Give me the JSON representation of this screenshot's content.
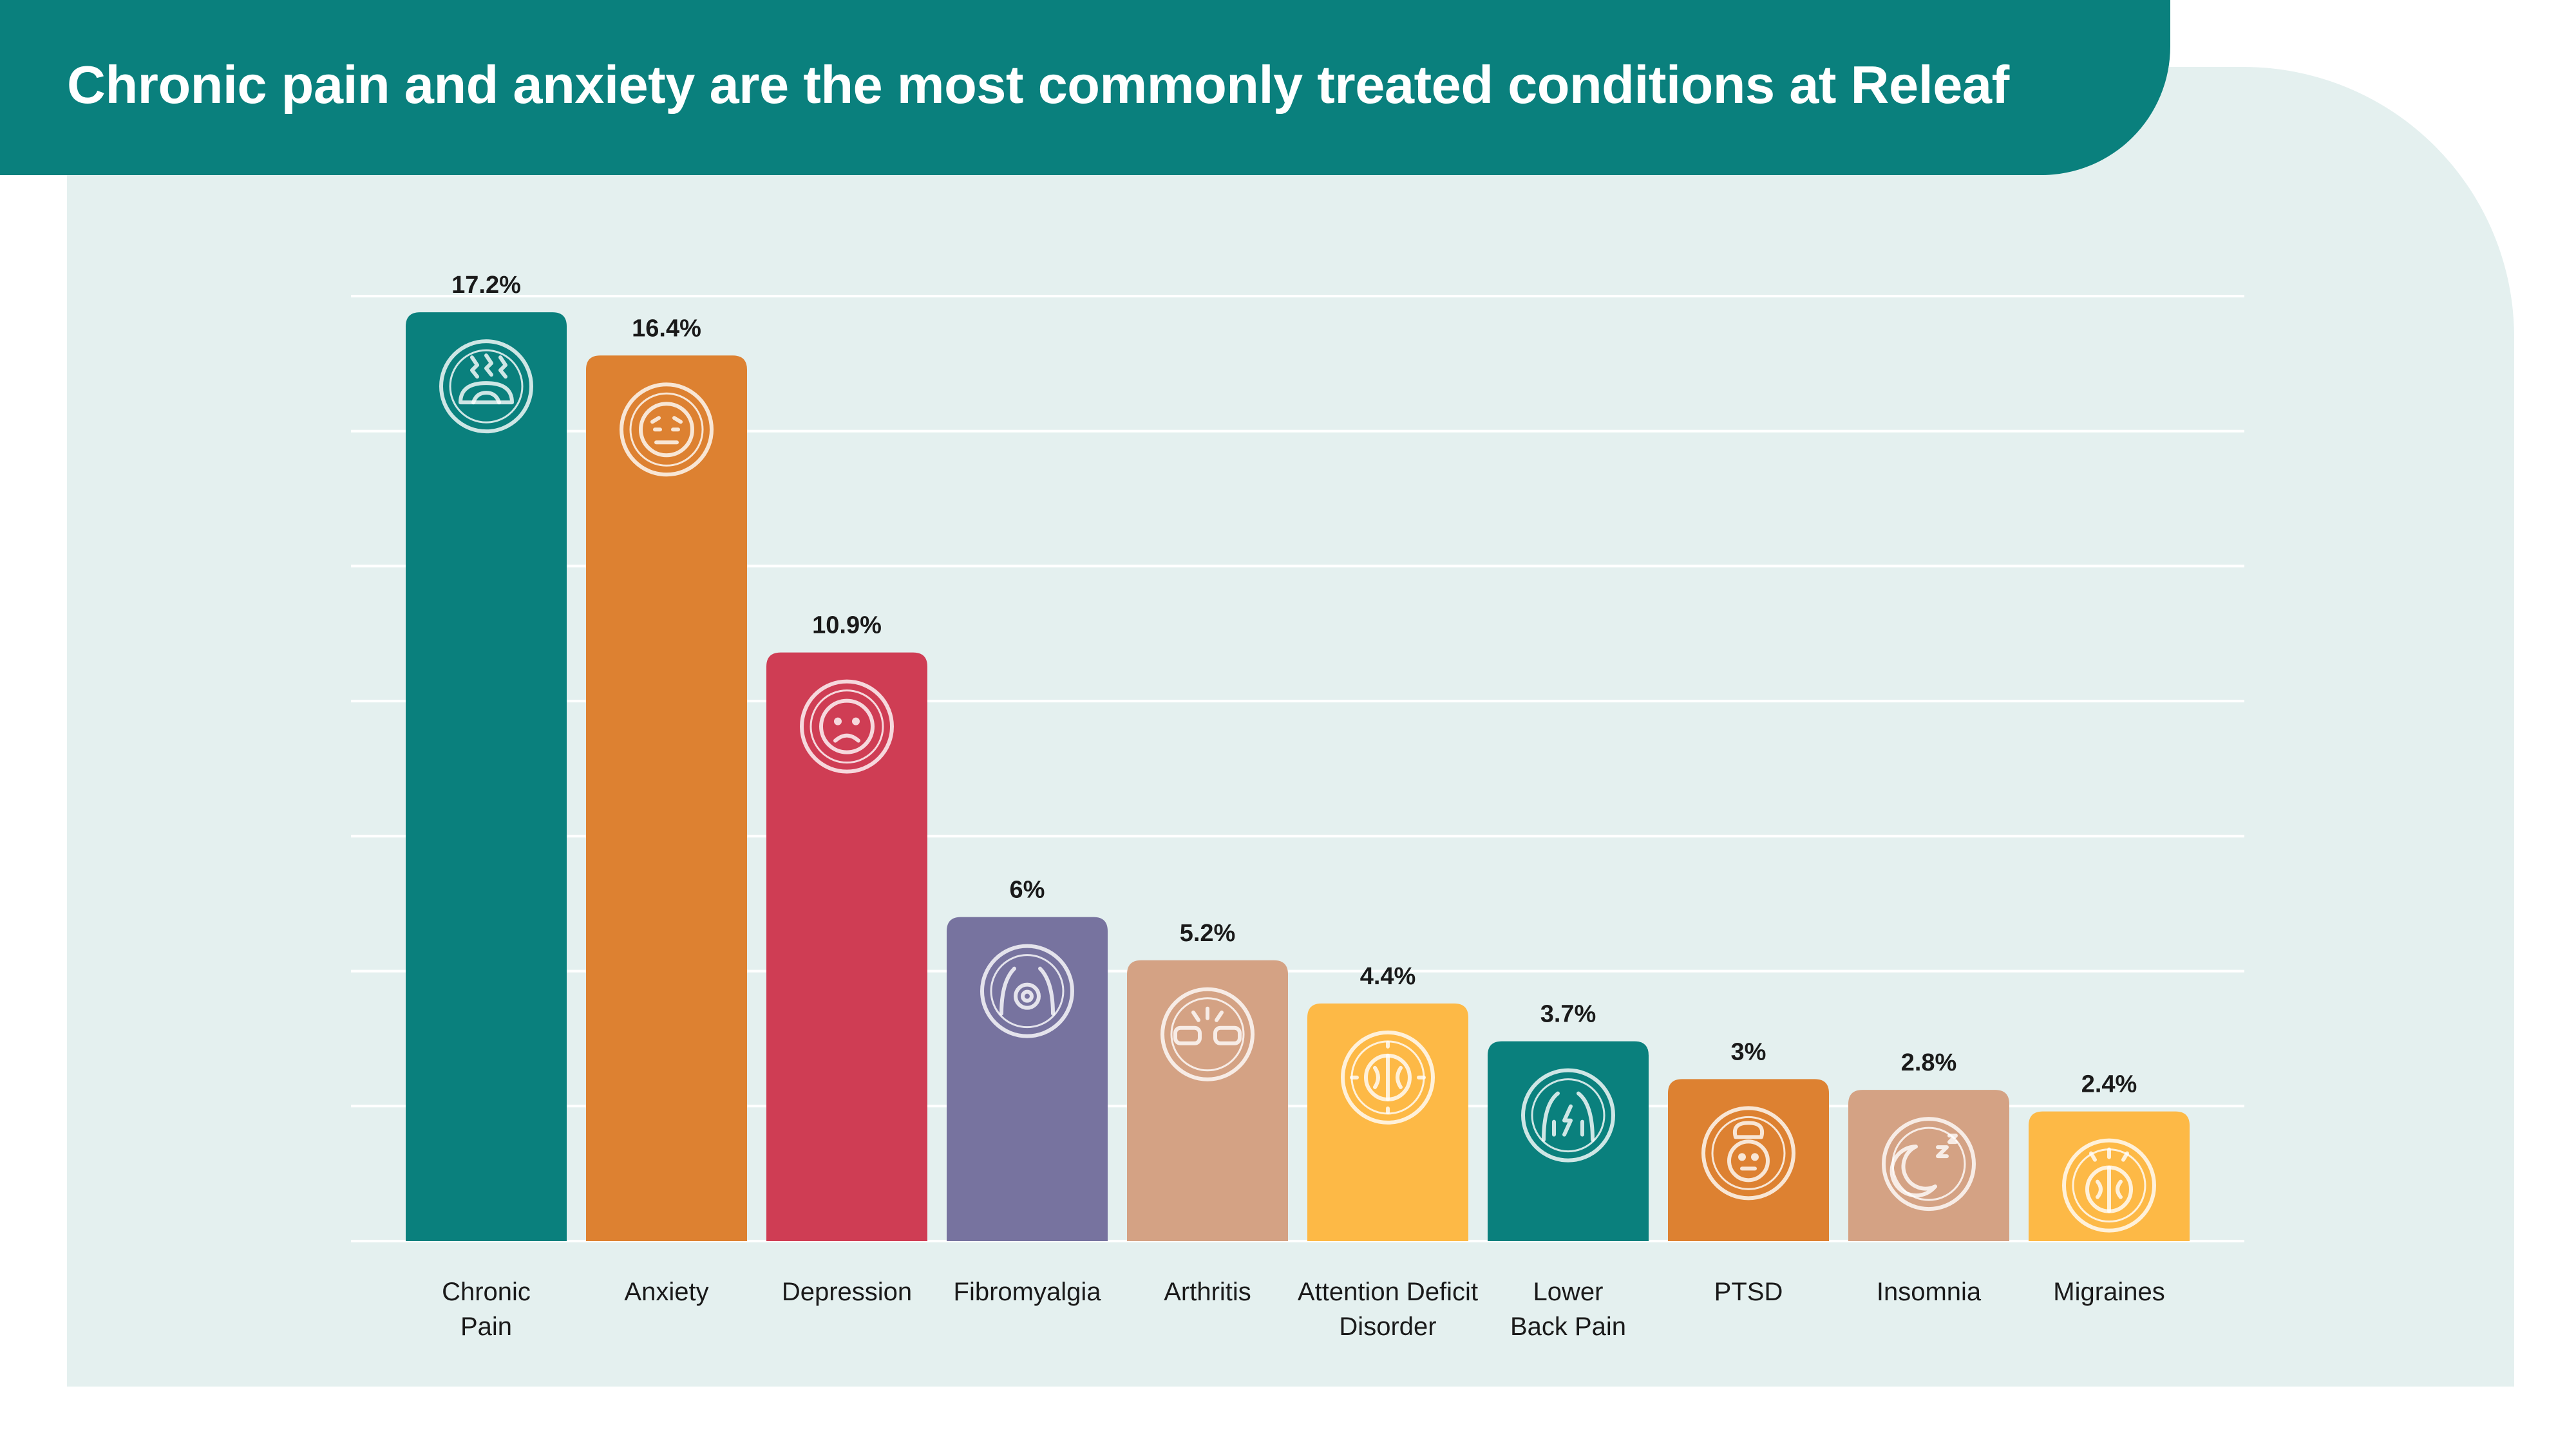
{
  "header": {
    "title": "Chronic pain and anxiety are the most commonly treated conditions at Releaf"
  },
  "colors": {
    "banner": "#0A807D",
    "panel": "#E4F0EF",
    "gridline": "#FFFFFF",
    "label_text": "#1A1A1A"
  },
  "chart_data": {
    "type": "bar",
    "categories": [
      [
        "Chronic",
        "Pain"
      ],
      [
        "Anxiety"
      ],
      [
        "Depression"
      ],
      [
        "Fibromyalgia"
      ],
      [
        "Arthritis"
      ],
      [
        "Attention Deficit",
        "Disorder"
      ],
      [
        "Lower",
        "Back Pain"
      ],
      [
        "PTSD"
      ],
      [
        "Insomnia"
      ],
      [
        "Migraines"
      ]
    ],
    "values": [
      17.2,
      16.4,
      10.9,
      6,
      5.2,
      4.4,
      3.7,
      3,
      2.8,
      2.4
    ],
    "data_labels": [
      "17.2%",
      "16.4%",
      "10.9%",
      "6%",
      "5.2%",
      "4.4%",
      "3.7%",
      "3%",
      "2.8%",
      "2.4%"
    ],
    "bar_colors": [
      "#0A807D",
      "#DD8131",
      "#CF3D54",
      "#77739F",
      "#D4A284",
      "#FDB946",
      "#0A807D",
      "#DD8131",
      "#D4A284",
      "#FDB946"
    ],
    "icons": [
      "brain-pain-icon",
      "anxious-face-icon",
      "sad-face-icon",
      "torso-fibromyalgia-icon",
      "joint-arthritis-icon",
      "brain-focus-icon",
      "back-pain-icon",
      "ptsd-head-icon",
      "moon-sleep-icon",
      "brain-migraine-icon"
    ],
    "ylim": [
      0,
      17.5
    ],
    "grid": true,
    "legend": "none"
  }
}
